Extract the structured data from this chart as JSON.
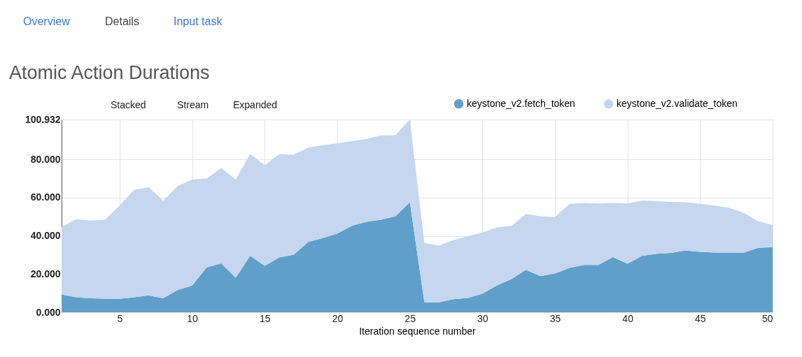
{
  "chart_data": {
    "type": "area",
    "stacked": true,
    "title": "Atomic Action Durations",
    "xlabel": "Iteration sequence number",
    "annotations": [
      "Overview",
      "Details",
      "Input task",
      "Stacked",
      "Stream",
      "Expanded"
    ],
    "x": [
      1,
      2,
      3,
      4,
      5,
      6,
      7,
      8,
      9,
      10,
      11,
      12,
      13,
      14,
      15,
      16,
      17,
      18,
      19,
      20,
      21,
      22,
      23,
      24,
      25,
      26,
      27,
      28,
      29,
      30,
      31,
      32,
      33,
      34,
      35,
      36,
      37,
      38,
      39,
      40,
      41,
      42,
      43,
      44,
      45,
      46,
      47,
      48,
      49,
      50
    ],
    "series": [
      {
        "name": "keystone_v2.fetch_token",
        "color": "#5f9fca",
        "values": [
          9.3,
          7.9,
          7.3,
          7.1,
          7.0,
          7.9,
          8.9,
          7.3,
          11.7,
          14.0,
          23.5,
          25.6,
          18.1,
          29.6,
          24.3,
          28.7,
          30.2,
          36.8,
          38.9,
          41.2,
          45.3,
          47.4,
          48.5,
          50.2,
          57.6,
          5.3,
          5.2,
          6.9,
          7.5,
          9.7,
          14.1,
          17.4,
          22.2,
          18.9,
          20.3,
          23.2,
          24.8,
          24.8,
          28.9,
          25.4,
          29.5,
          30.6,
          31.1,
          32.4,
          31.6,
          31.3,
          31.3,
          31.2,
          33.7,
          34.1
        ]
      },
      {
        "name": "keystone_v2.validate_token",
        "color": "#c5d6ee",
        "values": [
          35.3,
          40.8,
          40.7,
          41.4,
          48.9,
          56.2,
          56.6,
          51.0,
          54.4,
          55.5,
          46.5,
          49.9,
          51.4,
          53.3,
          52.7,
          54.1,
          52.3,
          49.5,
          48.5,
          47.3,
          44.3,
          43.3,
          44.1,
          42.4,
          43.3,
          31.0,
          29.7,
          30.9,
          32.4,
          32.1,
          30.3,
          27.9,
          29.3,
          31.3,
          29.5,
          33.5,
          32.4,
          32.2,
          28.3,
          31.6,
          28.9,
          27.6,
          26.7,
          25.2,
          25.2,
          24.6,
          23.4,
          20.8,
          13.9,
          11.6
        ]
      }
    ],
    "xlim": [
      1,
      50
    ],
    "xticks": [
      5,
      10,
      15,
      20,
      25,
      30,
      35,
      40,
      45,
      50
    ],
    "ylim": [
      0,
      100.932
    ],
    "yticks": [
      {
        "value": 0,
        "label": "0.000"
      },
      {
        "value": 20,
        "label": "20.000"
      },
      {
        "value": 40,
        "label": "40.000"
      },
      {
        "value": 60,
        "label": "60.000"
      },
      {
        "value": 80,
        "label": "80.000"
      },
      {
        "value": 100.932,
        "label": "100.932"
      }
    ],
    "grid": true,
    "legend": "top right"
  }
}
